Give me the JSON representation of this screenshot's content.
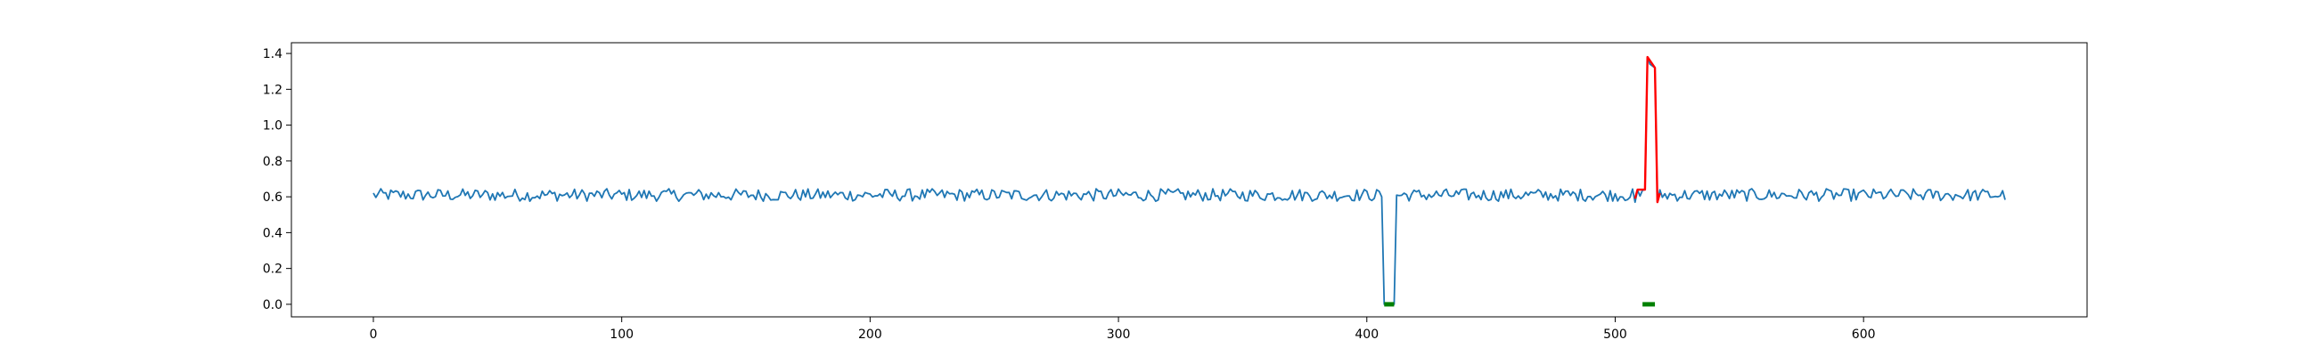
{
  "chart_data": {
    "type": "line",
    "title": "",
    "xlabel": "",
    "ylabel": "",
    "xlim": [
      -33,
      690
    ],
    "ylim": [
      -0.07,
      1.46
    ],
    "x_ticks": [
      0,
      100,
      200,
      300,
      400,
      500,
      600
    ],
    "x_tick_labels": [
      "0",
      "100",
      "200",
      "300",
      "400",
      "500",
      "600"
    ],
    "y_ticks": [
      0.0,
      0.2,
      0.4,
      0.6,
      0.8,
      1.0,
      1.2,
      1.4
    ],
    "y_tick_labels": [
      "0.0",
      "0.2",
      "0.4",
      "0.6",
      "0.8",
      "1.0",
      "1.2",
      "1.4"
    ],
    "grid": false,
    "legend": "none",
    "series": [
      {
        "color": "#1f77b4",
        "style": "line",
        "baseline": 0.61,
        "noise_amplitude": 0.035,
        "x_start": 0,
        "x_end": 657,
        "dropouts": [
          {
            "x_start": 407,
            "x_end": 411,
            "value": 0.0
          }
        ],
        "spikes": [
          {
            "x": 508,
            "value": 0.57
          },
          {
            "x": 512,
            "value": 0.64
          },
          {
            "x": 513,
            "value": 1.38
          },
          {
            "x": 516,
            "value": 1.32
          },
          {
            "x": 517,
            "value": 0.57
          }
        ]
      },
      {
        "color": "#ff0000",
        "style": "line",
        "x": [
          508,
          509,
          511,
          512,
          513,
          516,
          517,
          518
        ],
        "values": [
          0.59,
          0.64,
          0.64,
          0.64,
          1.38,
          1.32,
          0.57,
          0.62
        ]
      },
      {
        "color": "#008000",
        "style": "thick-segment",
        "x": [
          407,
          408,
          409,
          410,
          411
        ],
        "values": [
          0.0,
          0.0,
          0.0,
          0.0,
          0.0
        ]
      },
      {
        "color": "#008000",
        "style": "thick-segment",
        "x": [
          511,
          512,
          513,
          514,
          515,
          516
        ],
        "values": [
          0.0,
          0.0,
          0.0,
          0.0,
          0.0,
          0.0
        ]
      }
    ]
  }
}
